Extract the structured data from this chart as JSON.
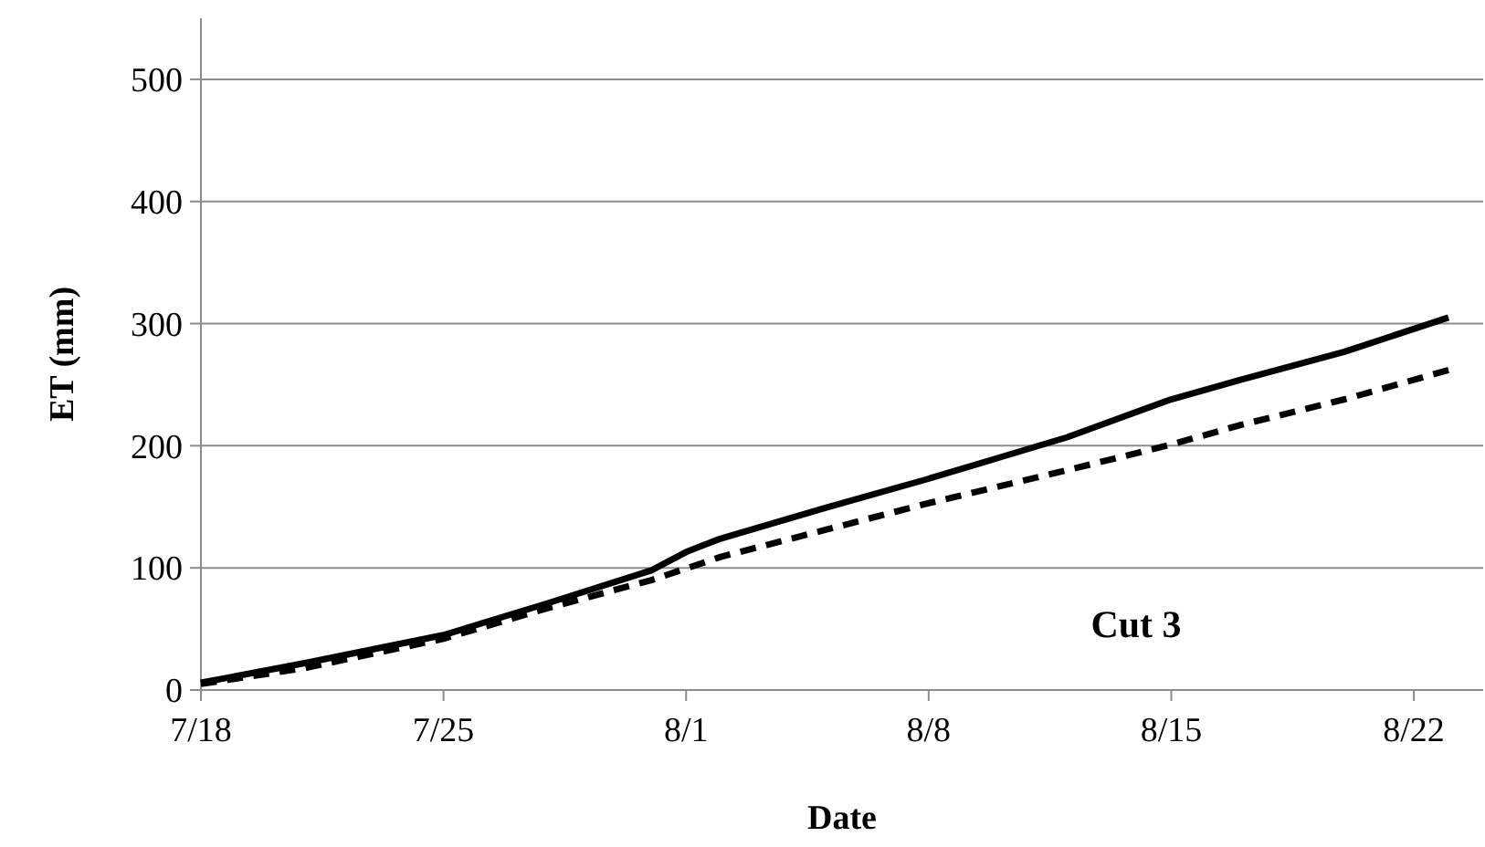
{
  "chart_data": {
    "type": "line",
    "xlabel": "Date",
    "ylabel": "ET (mm)",
    "annotations": [
      "Cut 3"
    ],
    "xlim": [
      "--07-18",
      "--08-24"
    ],
    "xticks": [
      {
        "value": "--07-18",
        "label": "7/18"
      },
      {
        "value": "--07-25",
        "label": "7/25"
      },
      {
        "value": "--08-01",
        "label": "8/1"
      },
      {
        "value": "--08-08",
        "label": "8/8"
      },
      {
        "value": "--08-15",
        "label": "8/15"
      },
      {
        "value": "--08-22",
        "label": "8/22"
      }
    ],
    "ylim": [
      0,
      550
    ],
    "yticks": [
      0,
      100,
      200,
      300,
      400,
      500
    ],
    "grid": "y",
    "marker": "none",
    "series": [
      {
        "color": "#000000",
        "line_style": "solid",
        "x": [
          "--07-18",
          "--07-21",
          "--07-25",
          "--07-28",
          "--07-31",
          "--08-01",
          "--08-02",
          "--08-05",
          "--08-08",
          "--08-10",
          "--08-12",
          "--08-15",
          "--08-17",
          "--08-20",
          "--08-23"
        ],
        "values": [
          6,
          22,
          45,
          71,
          98,
          113,
          124,
          149,
          173,
          190,
          207,
          238,
          254,
          277,
          305
        ]
      },
      {
        "color": "#000000",
        "line_style": "dashed",
        "x": [
          "--07-18",
          "--07-21",
          "--07-25",
          "--07-28",
          "--07-31",
          "--08-02",
          "--08-05",
          "--08-08",
          "--08-12",
          "--08-15",
          "--08-17",
          "--08-20",
          "--08-23"
        ],
        "values": [
          5,
          18,
          42,
          67,
          90,
          109,
          131,
          153,
          180,
          201,
          217,
          238,
          262
        ]
      }
    ]
  }
}
